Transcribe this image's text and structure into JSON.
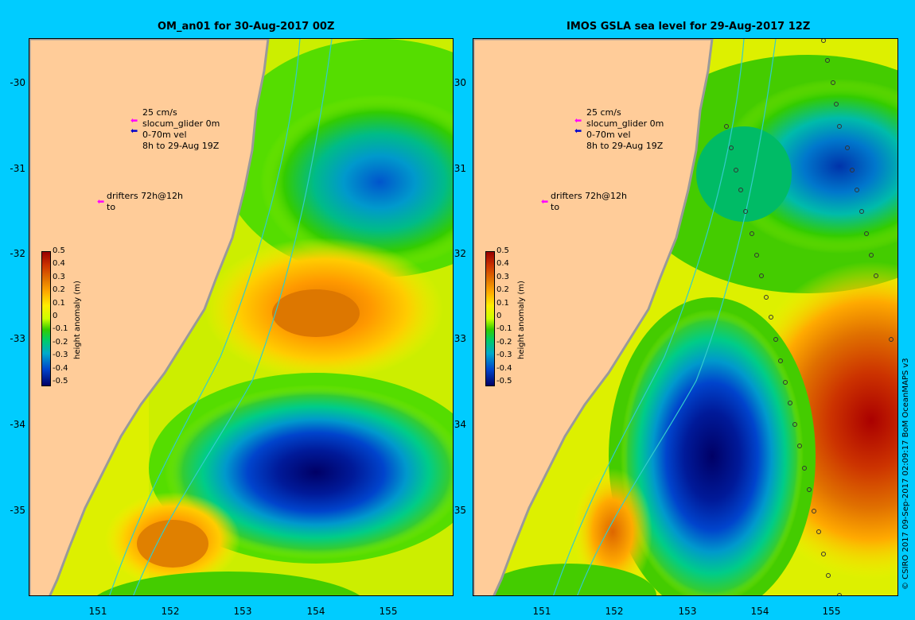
{
  "panels": [
    {
      "title": "OM_an01 for 30-Aug-2017 00Z"
    },
    {
      "title": "IMOS GSLA sea level  for 29-Aug-2017 12Z"
    }
  ],
  "legend": {
    "line1": "25 cm/s",
    "line2": "slocum_glider 0m",
    "line3": "0-70m vel",
    "line4": "8h to 29-Aug 19Z",
    "drifters1": "drifters 72h@12h",
    "drifters2": "to",
    "colors": {
      "glider": "#ff00ff",
      "vel": "#0000cc",
      "drifters": "#ff00ff"
    }
  },
  "colorbar": {
    "title": "height anomaly (m)",
    "labels": [
      "0.5",
      "0.4",
      "0.3",
      "0.2",
      "0.1",
      "0",
      "-0.1",
      "-0.2",
      "-0.3",
      "-0.4",
      "-0.5"
    ],
    "colors": [
      "#990000",
      "#cc3300",
      "#e07000",
      "#ffaa00",
      "#ffee00",
      "#ccff00",
      "#33cc00",
      "#00cc66",
      "#00aacc",
      "#0044cc",
      "#000066"
    ]
  },
  "axes": {
    "y_labels": [
      "-30",
      "-31",
      "-32",
      "-33",
      "-34",
      "-35"
    ],
    "x_labels": [
      "151",
      "152",
      "153",
      "154",
      "155"
    ]
  },
  "copyright": "© CSIRO 2017  09-Sep-2017 02:09:17 BoM OceanMAPS v3",
  "map_colors": {
    "land": "#ffcc99",
    "coast": "#999999",
    "ocean_bg": "#ffff33"
  }
}
